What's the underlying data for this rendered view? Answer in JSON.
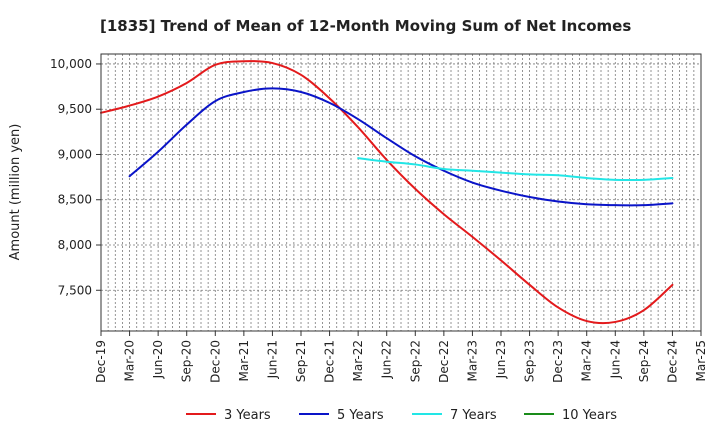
{
  "chart_data": {
    "type": "line",
    "title": "[1835]  Trend of Mean of 12-Month Moving Sum of Net Incomes",
    "xlabel": "",
    "ylabel": "Amount (million yen)",
    "ylim": [
      7050,
      10110
    ],
    "yticks": [
      7500,
      8000,
      8500,
      9000,
      9500,
      10000
    ],
    "ytick_labels": [
      "7,500",
      "8,000",
      "8,500",
      "9,000",
      "9,500",
      "10,000"
    ],
    "categories": [
      "Dec-19",
      "Mar-20",
      "Jun-20",
      "Sep-20",
      "Dec-20",
      "Mar-21",
      "Jun-21",
      "Sep-21",
      "Dec-21",
      "Mar-22",
      "Jun-22",
      "Sep-22",
      "Dec-22",
      "Mar-23",
      "Jun-23",
      "Sep-23",
      "Dec-23",
      "Mar-24",
      "Jun-24",
      "Sep-24",
      "Dec-24",
      "Mar-25"
    ],
    "grid": true,
    "legend_position": "bottom",
    "series": [
      {
        "name": "3 Years",
        "color": "#e31a1c",
        "values": [
          9460,
          9540,
          9640,
          9790,
          9990,
          10030,
          10010,
          9880,
          9620,
          9300,
          8940,
          8620,
          8340,
          8090,
          7830,
          7560,
          7310,
          7160,
          7150,
          7280,
          7560,
          null
        ]
      },
      {
        "name": "5 Years",
        "color": "#0a14c8",
        "values": [
          null,
          8760,
          9030,
          9330,
          9590,
          9690,
          9730,
          9690,
          9570,
          9390,
          9180,
          8980,
          8820,
          8690,
          8600,
          8530,
          8480,
          8450,
          8440,
          8440,
          8460,
          null
        ]
      },
      {
        "name": "7 Years",
        "color": "#22e6e6",
        "values": [
          null,
          null,
          null,
          null,
          null,
          null,
          null,
          null,
          null,
          8960,
          8920,
          8890,
          8840,
          8820,
          8800,
          8780,
          8770,
          8740,
          8720,
          8720,
          8740,
          null
        ]
      },
      {
        "name": "10 Years",
        "color": "#1a8c1a",
        "values": [
          null,
          null,
          null,
          null,
          null,
          null,
          null,
          null,
          null,
          null,
          null,
          null,
          null,
          null,
          null,
          null,
          null,
          null,
          null,
          null,
          null,
          null
        ]
      }
    ]
  }
}
